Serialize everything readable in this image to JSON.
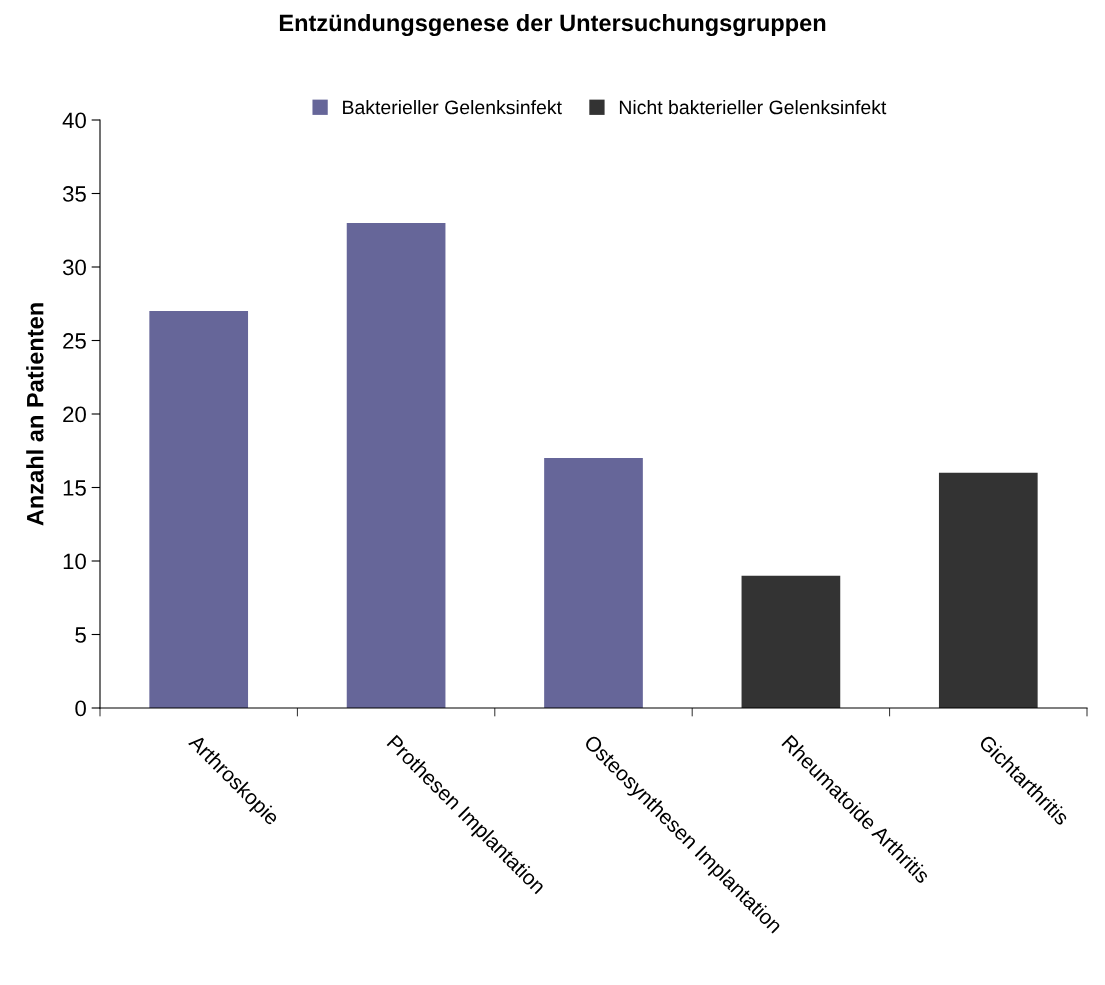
{
  "chart_data": {
    "type": "bar",
    "title": "Entzündungsgenese der Untersuchungsgruppen",
    "ylabel": "Anzahl an Patienten",
    "categories": [
      "Arthroskopie",
      "Prothesen Implantation",
      "Osteosynthesen Implantation",
      "Rheumatoide Arthritis",
      "Gichtarthritis"
    ],
    "series": [
      {
        "name": "Bakterieller Gelenksinfekt",
        "color": "#666699",
        "values": [
          27,
          33,
          17,
          null,
          null
        ]
      },
      {
        "name": "Nicht bakterieller Gelenksinfekt",
        "color": "#333333",
        "values": [
          null,
          null,
          null,
          9,
          16
        ]
      }
    ],
    "stacked": true,
    "ylim": [
      0,
      40
    ],
    "yticks": [
      0,
      5,
      10,
      15,
      20,
      25,
      30,
      35,
      40
    ],
    "grid": false,
    "legend": "top"
  }
}
